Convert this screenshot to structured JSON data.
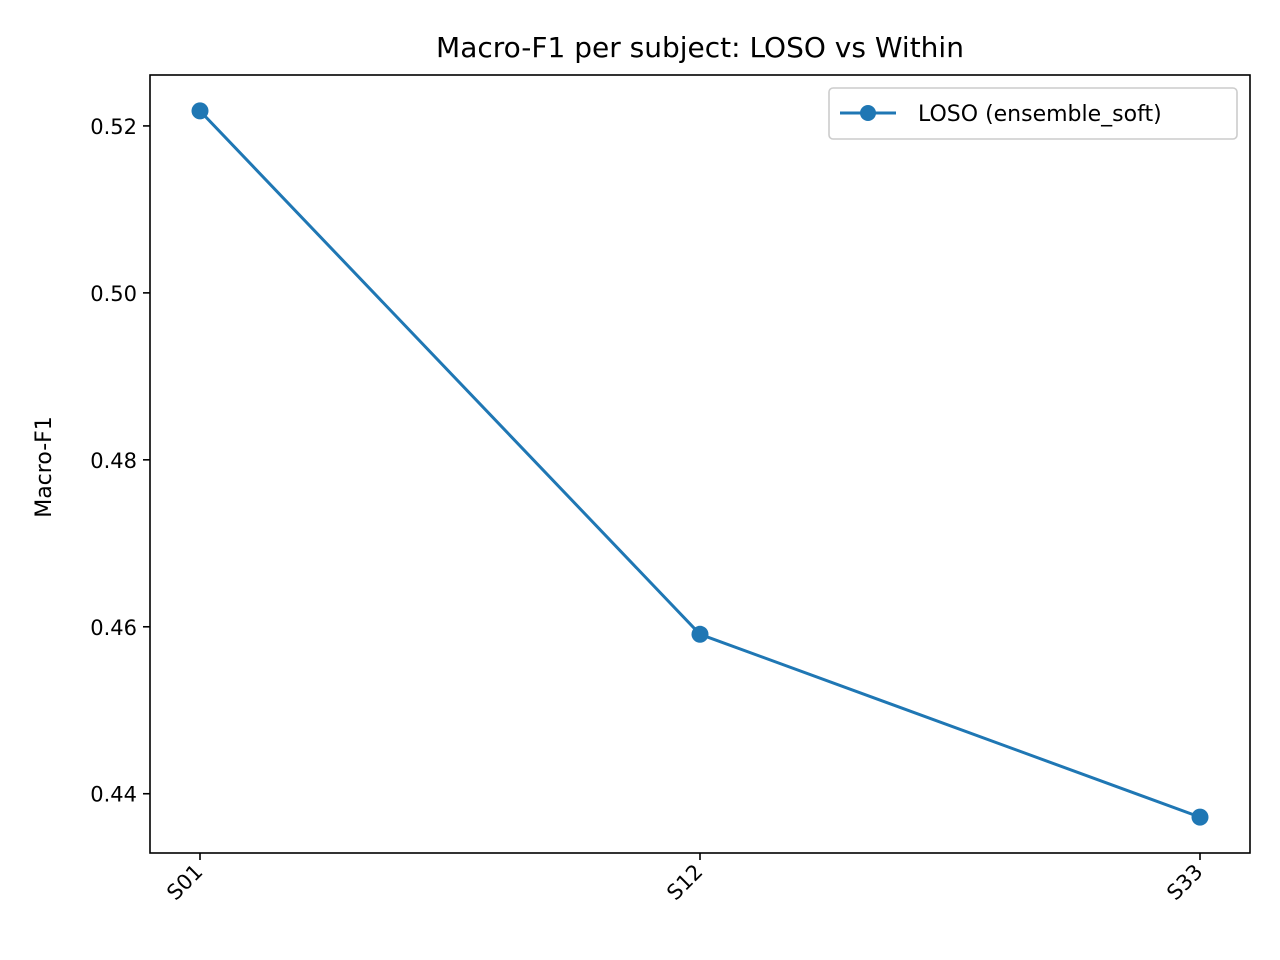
{
  "chart_data": {
    "type": "line",
    "title": "Macro-F1 per subject: LOSO vs Within",
    "xlabel": "",
    "ylabel": "Macro-F1",
    "categories": [
      "S01",
      "S12",
      "S33"
    ],
    "series": [
      {
        "name": "LOSO (ensemble_soft)",
        "values": [
          0.5218,
          0.4591,
          0.4372
        ],
        "color": "#1f77b4",
        "marker": "circle"
      }
    ],
    "yticks": [
      {
        "value": 0.44,
        "label": "0.44"
      },
      {
        "value": 0.46,
        "label": "0.46"
      },
      {
        "value": 0.48,
        "label": "0.48"
      },
      {
        "value": 0.5,
        "label": "0.50"
      },
      {
        "value": 0.52,
        "label": "0.52"
      }
    ],
    "ylim": [
      0.4329,
      0.5261
    ],
    "grid": false,
    "legend_position": "top-right"
  }
}
